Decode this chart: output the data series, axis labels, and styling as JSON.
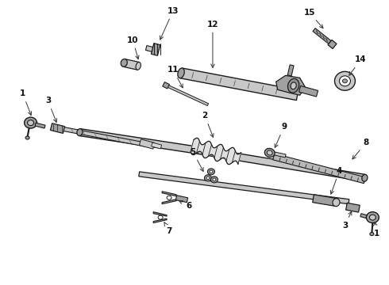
{
  "bg_color": "#ffffff",
  "fig_width": 4.9,
  "fig_height": 3.6,
  "dpi": 100,
  "line_color": "#1a1a1a",
  "fill_light": "#c8c8c8",
  "fill_mid": "#a0a0a0",
  "fill_dark": "#707070",
  "label_fontsize": 7.5,
  "label_color": "#111111"
}
